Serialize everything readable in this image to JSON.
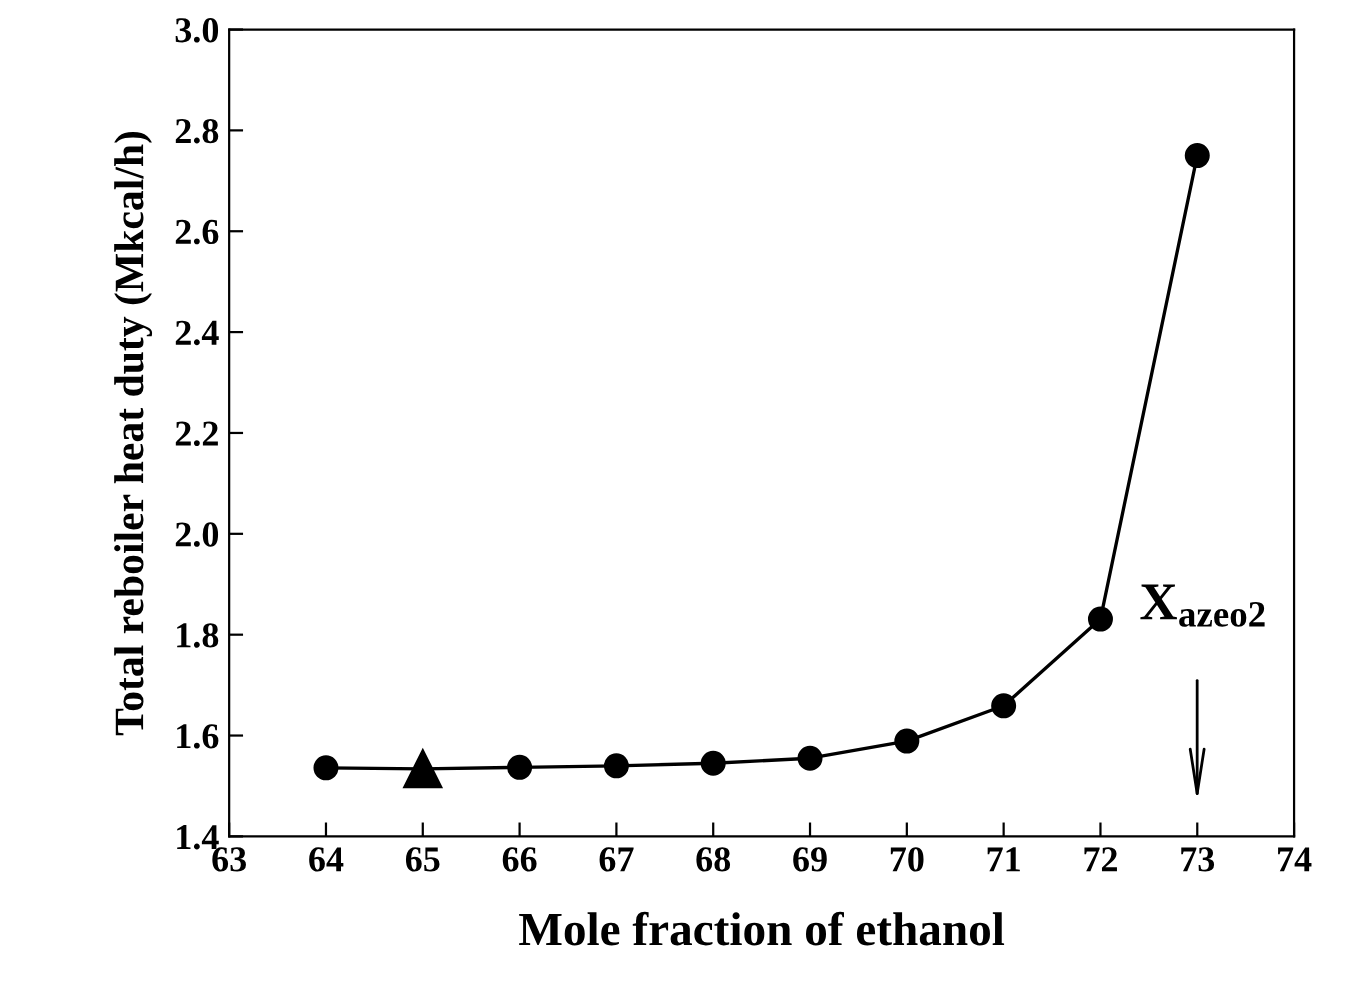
{
  "chart_data": {
    "type": "line",
    "xlabel": "Mole fraction of ethanol",
    "ylabel": "Total reboiler heat duty (Mkcal/h)",
    "x": [
      64,
      65,
      66,
      67,
      68,
      69,
      70,
      71,
      72,
      73
    ],
    "series": [
      {
        "color": "#000000",
        "marker": "none",
        "values": [
          1.536,
          1.534,
          1.537,
          1.54,
          1.545,
          1.555,
          1.589,
          1.659,
          1.831,
          2.75
        ]
      },
      {
        "type": "scatter",
        "color": "#000000",
        "marker": "circle",
        "values": [
          1.536,
          null,
          1.537,
          1.54,
          1.545,
          1.555,
          1.589,
          1.659,
          1.831,
          2.75
        ]
      },
      {
        "type": "scatter",
        "color": "#000000",
        "marker": "triangle",
        "values": [
          null,
          1.534,
          null,
          null,
          null,
          null,
          null,
          null,
          null,
          null
        ]
      }
    ],
    "xlim": [
      63,
      74
    ],
    "xticks": [
      63,
      64,
      65,
      66,
      67,
      68,
      69,
      70,
      71,
      72,
      73,
      74
    ],
    "ylim": [
      1.4,
      3.0
    ],
    "yticks": [
      1.4,
      1.6,
      1.8,
      {
        "value": 2,
        "label": "2.0"
      },
      2.2,
      2.4,
      2.6,
      2.8,
      {
        "value": 3,
        "label": "3.0"
      }
    ],
    "annotations": [
      "X$_{azeo2}$"
    ],
    "grid": false,
    "legend": false
  }
}
